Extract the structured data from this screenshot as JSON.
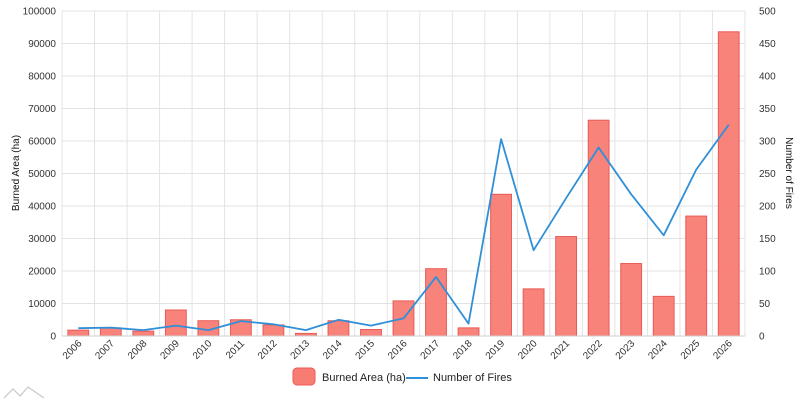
{
  "chart_data": {
    "type": "bar",
    "categories": [
      "2006",
      "2007",
      "2008",
      "2009",
      "2010",
      "2011",
      "2012",
      "2013",
      "2014",
      "2015",
      "2016",
      "2017",
      "2018",
      "2019",
      "2020",
      "2021",
      "2022",
      "2023",
      "2024",
      "2025",
      "2026"
    ],
    "series": [
      {
        "name": "Burned Area (ha)",
        "type": "bar",
        "axis": "left",
        "color": "#f87c74",
        "values": [
          1800,
          2500,
          1500,
          8000,
          4700,
          5000,
          3400,
          800,
          4700,
          2000,
          10800,
          20700,
          2500,
          43600,
          14500,
          30600,
          66400,
          22300,
          12200,
          36900,
          93600
        ]
      },
      {
        "name": "Number of Fires",
        "type": "line",
        "axis": "right",
        "color": "#2f8fd8",
        "values": [
          12,
          13,
          9,
          16,
          9,
          23,
          18,
          9,
          25,
          16,
          27,
          91,
          19,
          303,
          132,
          212,
          290,
          218,
          155,
          256,
          325
        ]
      }
    ],
    "ylabel": "Burned Area (ha)",
    "ylabel_right": "Number of Fires",
    "ylim": [
      0,
      100000
    ],
    "yticks": [
      0,
      10000,
      20000,
      30000,
      40000,
      50000,
      60000,
      70000,
      80000,
      90000,
      100000
    ],
    "ylim_right": [
      0,
      500
    ],
    "yticks_right": [
      0,
      50,
      100,
      150,
      200,
      250,
      300,
      350,
      400,
      450,
      500
    ],
    "grid": true,
    "legend_position": "bottom-center"
  }
}
